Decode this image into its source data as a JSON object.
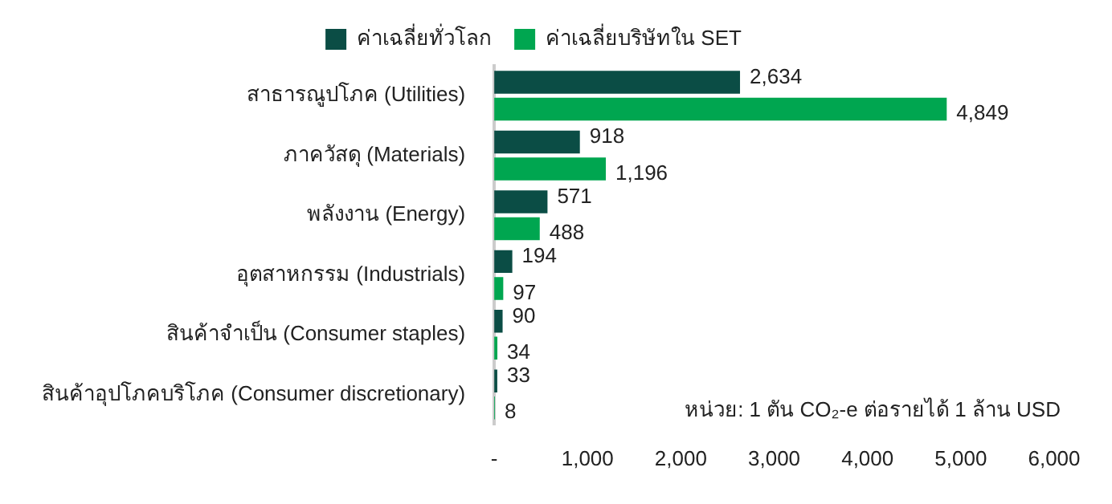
{
  "chart_data": {
    "type": "bar",
    "orientation": "horizontal",
    "categories": [
      "สาธารณูปโภค (Utilities)",
      "ภาควัสดุ (Materials)",
      "พลังงาน (Energy)",
      "อุตสาหกรรม (Industrials)",
      "สินค้าจำเป็น (Consumer staples)",
      "สินค้าอุปโภคบริโภค (Consumer discretionary)"
    ],
    "series": [
      {
        "name": "ค่าเฉลี่ยทั่วโลก",
        "color": "#0b4d45",
        "values": [
          2634,
          918,
          571,
          194,
          90,
          33
        ],
        "value_labels": [
          "2,634",
          "918",
          "571",
          "194",
          "90",
          "33"
        ]
      },
      {
        "name": "ค่าเฉลี่ยบริษัทใน SET",
        "color": "#00a650",
        "values": [
          4849,
          1196,
          488,
          97,
          34,
          8
        ],
        "value_labels": [
          "4,849",
          "1,196",
          "488",
          "97",
          "34",
          "8"
        ]
      }
    ],
    "xlim": [
      0,
      6000
    ],
    "xticks": [
      {
        "value": 0,
        "label": "-"
      },
      {
        "value": 1000,
        "label": "1,000"
      },
      {
        "value": 2000,
        "label": "2,000"
      },
      {
        "value": 3000,
        "label": "3,000"
      },
      {
        "value": 4000,
        "label": "4,000"
      },
      {
        "value": 5000,
        "label": "5,000"
      },
      {
        "value": 6000,
        "label": "6,000"
      }
    ],
    "grid": false,
    "legend": "top",
    "annotations": [
      "หน่วย: 1 ตัน CO₂-e ต่อรายได้ 1 ล้าน USD"
    ]
  }
}
